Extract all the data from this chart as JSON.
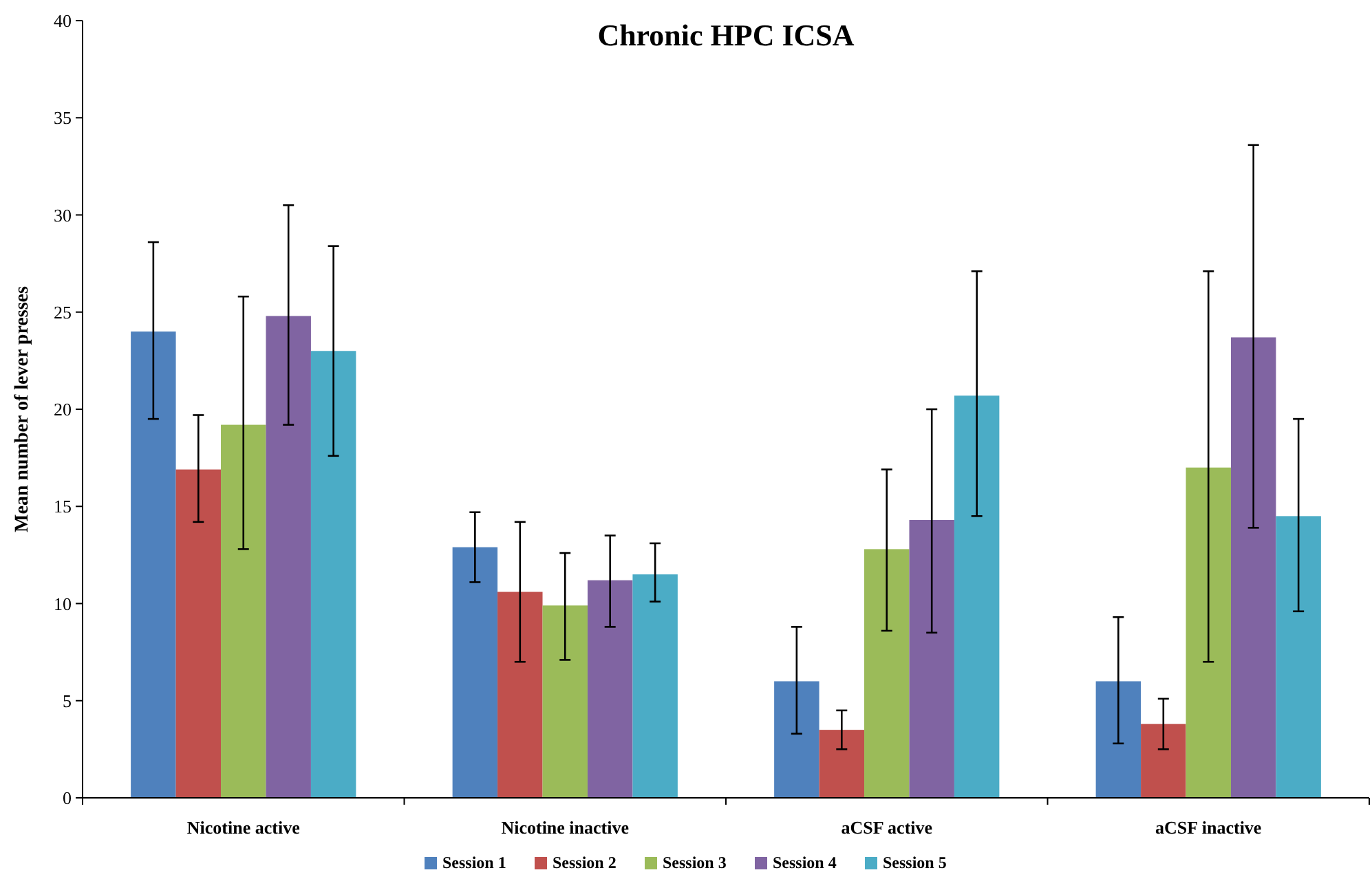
{
  "chart_data": {
    "type": "bar",
    "title": "Chronic HPC ICSA",
    "ylabel": "Mean number of lever presses",
    "categories": [
      "Nicotine active",
      "Nicotine inactive",
      "aCSF active",
      "aCSF inactive"
    ],
    "series": [
      {
        "name": "Session 1",
        "color": "#4f81bd",
        "values": [
          24.0,
          12.9,
          6.0,
          6.0
        ],
        "errors": [
          [
            19.5,
            28.6
          ],
          [
            11.1,
            14.7
          ],
          [
            3.3,
            8.8
          ],
          [
            2.8,
            9.3
          ]
        ]
      },
      {
        "name": "Session 2",
        "color": "#c0504d",
        "values": [
          16.9,
          10.6,
          3.5,
          3.8
        ],
        "errors": [
          [
            14.2,
            19.7
          ],
          [
            7.0,
            14.2
          ],
          [
            2.5,
            4.5
          ],
          [
            2.5,
            5.1
          ]
        ]
      },
      {
        "name": "Session 3",
        "color": "#9bbb59",
        "values": [
          19.2,
          9.9,
          12.8,
          17.0
        ],
        "errors": [
          [
            12.8,
            25.8
          ],
          [
            7.1,
            12.6
          ],
          [
            8.6,
            16.9
          ],
          [
            7.0,
            27.1
          ]
        ]
      },
      {
        "name": "Session 4",
        "color": "#8064a2",
        "values": [
          24.8,
          11.2,
          14.3,
          23.7
        ],
        "errors": [
          [
            19.2,
            30.5
          ],
          [
            8.8,
            13.5
          ],
          [
            8.5,
            20.0
          ],
          [
            13.9,
            33.6
          ]
        ]
      },
      {
        "name": "Session 5",
        "color": "#4bacc6",
        "values": [
          23.0,
          11.5,
          20.7,
          14.5
        ],
        "errors": [
          [
            17.6,
            28.4
          ],
          [
            10.1,
            13.1
          ],
          [
            14.5,
            27.1
          ],
          [
            9.6,
            19.5
          ]
        ]
      }
    ],
    "ylim": [
      0,
      40
    ],
    "yticks": [
      0,
      5,
      10,
      15,
      20,
      25,
      30,
      35,
      40
    ],
    "grid": false,
    "legend": "bottom"
  }
}
